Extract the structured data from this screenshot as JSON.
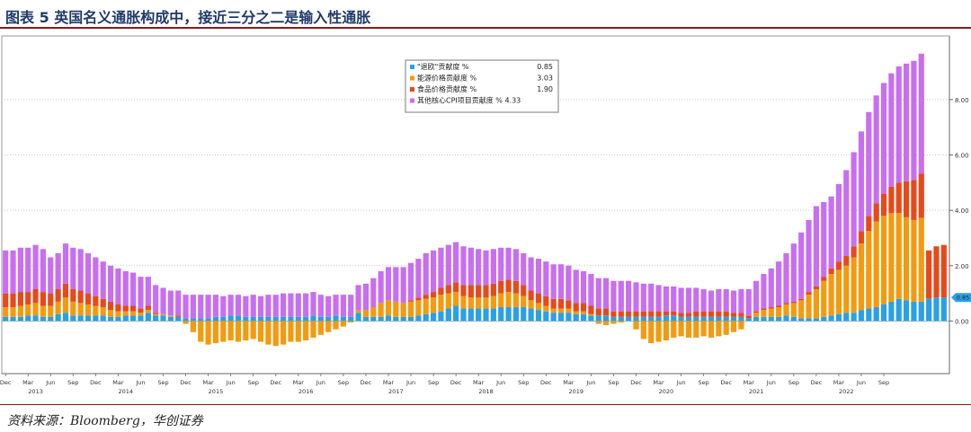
{
  "title": "图表 5 英国名义通胀构成中，接近三分之二是输入性通胀",
  "source": "资料来源：Bloomberg，华创证券",
  "colors": {
    "base": "#2aa0e6",
    "energy": "#f39a0e",
    "food": "#e8491a",
    "other": "#c86ef0"
  },
  "chart_data": {
    "type": "bar",
    "stacked": true,
    "title": "",
    "xlabel": "",
    "ylabel": "",
    "ylim": [
      -1.9,
      10.3
    ],
    "yticks": [
      "0.00",
      "2.00",
      "4.00",
      "6.00",
      "8.00"
    ],
    "yaxis_side": "right",
    "grid": true,
    "legend_position": "top-center",
    "month_ticks": [
      "Dec",
      "Mar",
      "Jun",
      "Sep",
      "Dec",
      "Mar",
      "Jun",
      "Sep",
      "Dec",
      "Mar",
      "Jun",
      "Sep",
      "Dec",
      "Mar",
      "Jun",
      "Sep",
      "Dec",
      "Mar",
      "Jun",
      "Sep",
      "Dec",
      "Mar",
      "Jun",
      "Sep",
      "Dec",
      "Mar",
      "Jun",
      "Sep",
      "Dec",
      "Mar",
      "Jun",
      "Sep",
      "Dec",
      "Mar",
      "Jun",
      "Sep",
      "Dec",
      "Mar",
      "Jun",
      "Sep"
    ],
    "year_labels": [
      {
        "label": "2013",
        "month_index": 4
      },
      {
        "label": "2014",
        "month_index": 16
      },
      {
        "label": "2015",
        "month_index": 28
      },
      {
        "label": "2016",
        "month_index": 40
      },
      {
        "label": "2017",
        "month_index": 52
      },
      {
        "label": "2018",
        "month_index": 64
      },
      {
        "label": "2019",
        "month_index": 76
      },
      {
        "label": "2020",
        "month_index": 88
      },
      {
        "label": "2021",
        "month_index": 100
      },
      {
        "label": "2022",
        "month_index": 112
      }
    ],
    "series": [
      {
        "name": "\"退欧\"贡献度 %",
        "last_value": "0.85",
        "values": [
          0.15,
          0.15,
          0.15,
          0.2,
          0.2,
          0.15,
          0.15,
          0.25,
          0.3,
          0.2,
          0.2,
          0.2,
          0.2,
          0.2,
          0.15,
          0.15,
          0.2,
          0.2,
          0.2,
          0.3,
          0.2,
          0.2,
          0.15,
          0.15,
          0.1,
          0.1,
          0.1,
          0.1,
          0.15,
          0.15,
          0.2,
          0.2,
          0.15,
          0.15,
          0.15,
          0.15,
          0.15,
          0.15,
          0.15,
          0.15,
          0.15,
          0.2,
          0.15,
          0.15,
          0.2,
          0.15,
          0.15,
          0.3,
          0.15,
          0.15,
          0.15,
          0.2,
          0.15,
          0.15,
          0.15,
          0.2,
          0.25,
          0.3,
          0.35,
          0.45,
          0.55,
          0.45,
          0.45,
          0.45,
          0.45,
          0.45,
          0.5,
          0.5,
          0.5,
          0.5,
          0.45,
          0.4,
          0.35,
          0.3,
          0.3,
          0.3,
          0.25,
          0.25,
          0.2,
          0.2,
          0.2,
          0.15,
          0.15,
          0.15,
          0.15,
          0.15,
          0.15,
          0.15,
          0.2,
          0.2,
          0.15,
          0.15,
          0.15,
          0.15,
          0.15,
          0.15,
          0.15,
          0.15,
          0.15,
          0.1,
          0.15,
          0.15,
          0.15,
          0.15,
          0.2,
          0.15,
          0.1,
          0.1,
          0.1,
          0.15,
          0.2,
          0.25,
          0.3,
          0.3,
          0.4,
          0.45,
          0.5,
          0.6,
          0.7,
          0.8,
          0.75,
          0.7,
          0.7,
          0.8,
          0.85,
          0.85
        ]
      },
      {
        "name": "能源价格贡献度 %",
        "last_value": "3.03",
        "values": [
          0.35,
          0.35,
          0.4,
          0.4,
          0.45,
          0.4,
          0.4,
          0.45,
          0.55,
          0.5,
          0.45,
          0.4,
          0.35,
          0.3,
          0.25,
          0.2,
          0.15,
          0.15,
          0.1,
          0.1,
          0.05,
          0.05,
          0.05,
          0,
          -0.1,
          -0.4,
          -0.75,
          -0.85,
          -0.8,
          -0.75,
          -0.7,
          -0.75,
          -0.7,
          -0.65,
          -0.75,
          -0.85,
          -0.9,
          -0.85,
          -0.75,
          -0.75,
          -0.7,
          -0.6,
          -0.5,
          -0.4,
          -0.3,
          -0.2,
          -0.05,
          0.1,
          0.25,
          0.35,
          0.5,
          0.55,
          0.55,
          0.5,
          0.55,
          0.55,
          0.55,
          0.55,
          0.6,
          0.55,
          0.5,
          0.45,
          0.4,
          0.4,
          0.4,
          0.45,
          0.5,
          0.55,
          0.5,
          0.4,
          0.3,
          0.25,
          0.2,
          0.15,
          0.15,
          0.15,
          0.1,
          0.1,
          0.05,
          -0.1,
          -0.15,
          -0.1,
          -0.05,
          0,
          -0.3,
          -0.65,
          -0.8,
          -0.75,
          -0.7,
          -0.6,
          -0.55,
          -0.6,
          -0.6,
          -0.55,
          -0.6,
          -0.55,
          -0.5,
          -0.4,
          -0.3,
          0,
          0.15,
          0.25,
          0.3,
          0.35,
          0.4,
          0.5,
          0.65,
          0.85,
          1.05,
          1.3,
          1.5,
          1.6,
          1.7,
          2.0,
          2.4,
          2.8,
          3.1,
          3.2,
          3.2,
          3.1,
          3.0,
          2.95,
          3.03
        ]
      },
      {
        "name": "食品价格贡献度 %",
        "last_value": "1.90",
        "values": [
          0.5,
          0.5,
          0.5,
          0.45,
          0.5,
          0.5,
          0.45,
          0.45,
          0.5,
          0.45,
          0.45,
          0.4,
          0.35,
          0.3,
          0.3,
          0.25,
          0.2,
          0.2,
          0.15,
          0.15,
          0.05,
          0,
          0,
          0.05,
          0,
          0,
          0,
          0,
          0,
          0,
          0,
          0,
          0,
          0,
          0,
          0,
          0,
          0,
          0,
          0,
          0,
          0,
          0,
          0,
          0,
          0,
          0,
          0,
          0,
          0,
          0,
          0,
          0,
          0,
          0.05,
          0.1,
          0.15,
          0.2,
          0.25,
          0.3,
          0.35,
          0.4,
          0.45,
          0.45,
          0.45,
          0.45,
          0.45,
          0.45,
          0.45,
          0.4,
          0.35,
          0.35,
          0.35,
          0.35,
          0.35,
          0.3,
          0.3,
          0.3,
          0.3,
          0.25,
          0.25,
          0.2,
          0.2,
          0.2,
          0.2,
          0.2,
          0.2,
          0.2,
          0.15,
          0.15,
          0.15,
          0.15,
          0.2,
          0.2,
          0.2,
          0.2,
          0.2,
          0.15,
          0.15,
          0.1,
          0.05,
          0.05,
          0.05,
          0.05,
          0.05,
          0.05,
          0.05,
          0.1,
          0.1,
          0.15,
          0.2,
          0.3,
          0.35,
          0.4,
          0.45,
          0.55,
          0.65,
          0.8,
          0.95,
          1.1,
          1.3,
          1.45,
          1.6,
          1.75,
          1.85,
          1.9
        ]
      },
      {
        "name": "其他核心CPI项目贡献度 % 4.33",
        "last_value": "4.33",
        "values": [
          1.55,
          1.55,
          1.6,
          1.6,
          1.6,
          1.55,
          1.3,
          1.3,
          1.45,
          1.5,
          1.5,
          1.45,
          1.4,
          1.35,
          1.3,
          1.3,
          1.25,
          1.2,
          1.15,
          1.05,
          1.0,
          0.95,
          0.9,
          0.9,
          0.85,
          0.85,
          0.85,
          0.85,
          0.8,
          0.75,
          0.75,
          0.75,
          0.75,
          0.8,
          0.75,
          0.8,
          0.8,
          0.85,
          0.85,
          0.85,
          0.85,
          0.85,
          0.8,
          0.75,
          0.75,
          0.8,
          0.8,
          0.9,
          0.95,
          1.05,
          1.15,
          1.2,
          1.25,
          1.3,
          1.35,
          1.4,
          1.5,
          1.5,
          1.45,
          1.45,
          1.45,
          1.4,
          1.35,
          1.3,
          1.25,
          1.25,
          1.2,
          1.15,
          1.15,
          1.15,
          1.2,
          1.25,
          1.25,
          1.25,
          1.25,
          1.25,
          1.2,
          1.15,
          1.15,
          1.1,
          1.1,
          1.1,
          1.1,
          1.1,
          1.05,
          1.0,
          1.0,
          0.95,
          0.9,
          0.9,
          0.9,
          0.9,
          0.85,
          0.8,
          0.75,
          0.8,
          0.8,
          0.8,
          0.85,
          0.95,
          1.1,
          1.25,
          1.4,
          1.6,
          1.8,
          2.1,
          2.4,
          2.6,
          2.9,
          2.7,
          2.6,
          2.8,
          3.1,
          3.4,
          3.6,
          3.75,
          3.9,
          4.0,
          4.1,
          4.2,
          4.25,
          4.3,
          4.33
        ]
      }
    ]
  }
}
